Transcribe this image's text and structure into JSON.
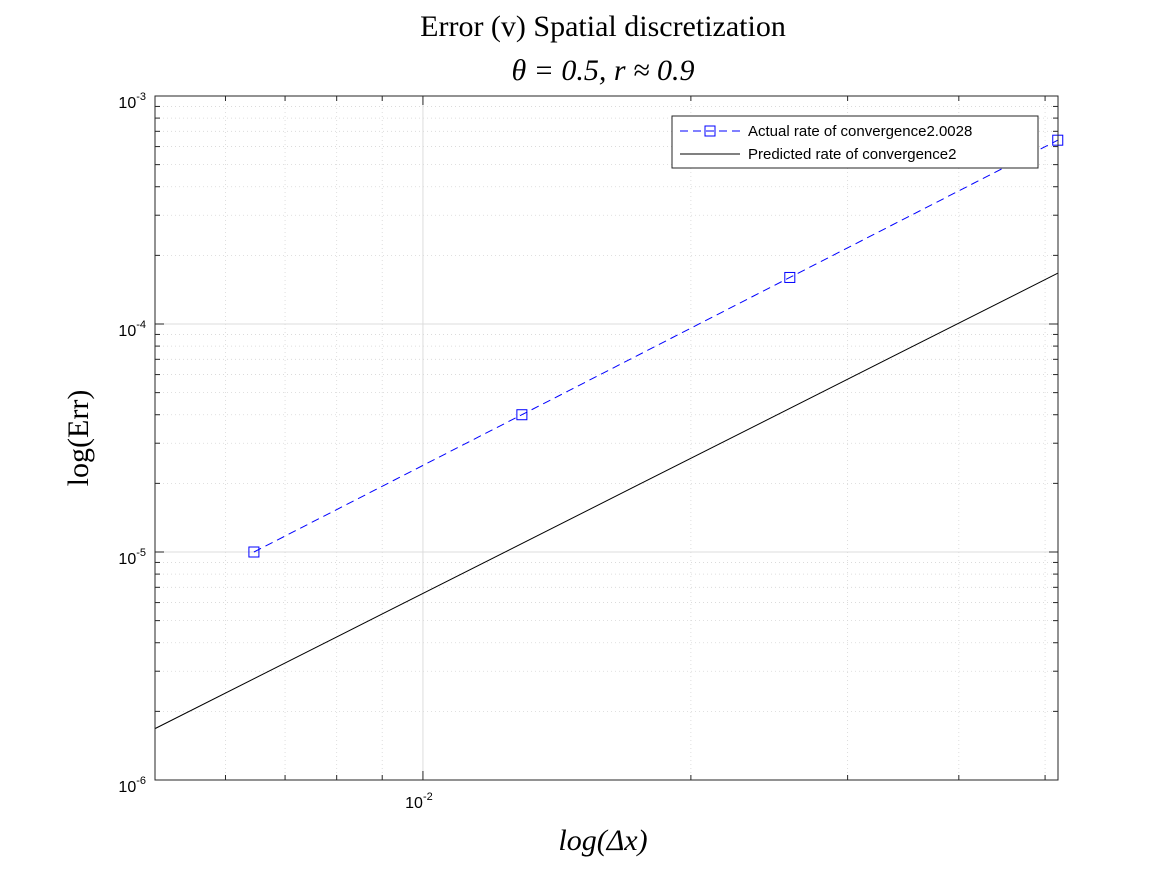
{
  "chart_data": {
    "type": "line",
    "title": "Error (v) Spatial discretization",
    "subtitle": "θ = 0.5, r ≈ 0.9",
    "xlabel": "log(Δx)",
    "ylabel": "log(Err)",
    "xscale": "log",
    "yscale": "log",
    "xlim": [
      0.005,
      0.0517
    ],
    "ylim": [
      1e-06,
      0.001
    ],
    "grid": true,
    "legend_position": "top-right",
    "x_ticks": [
      {
        "value": 0.01,
        "base": "10",
        "exp": "-2"
      }
    ],
    "y_ticks": [
      {
        "value": 1e-06,
        "base": "10",
        "exp": "-6"
      },
      {
        "value": 1e-05,
        "base": "10",
        "exp": "-5"
      },
      {
        "value": 0.0001,
        "base": "10",
        "exp": "-4"
      },
      {
        "value": 0.001,
        "base": "10",
        "exp": "-3"
      }
    ],
    "series": [
      {
        "name": "Actual rate of convergence2.0028",
        "color": "#0000ff",
        "line_style": "dashed",
        "marker": "square",
        "x": [
          0.006458,
          0.012917,
          0.025833,
          0.051667
        ],
        "y": [
          1e-05,
          4e-05,
          0.00016,
          0.00064
        ]
      },
      {
        "name": "Predicted rate of convergence2",
        "color": "#000000",
        "line_style": "solid",
        "marker": "none",
        "x": [
          0.005,
          0.051667
        ],
        "y": [
          1.68e-06,
          0.000167
        ]
      }
    ]
  }
}
